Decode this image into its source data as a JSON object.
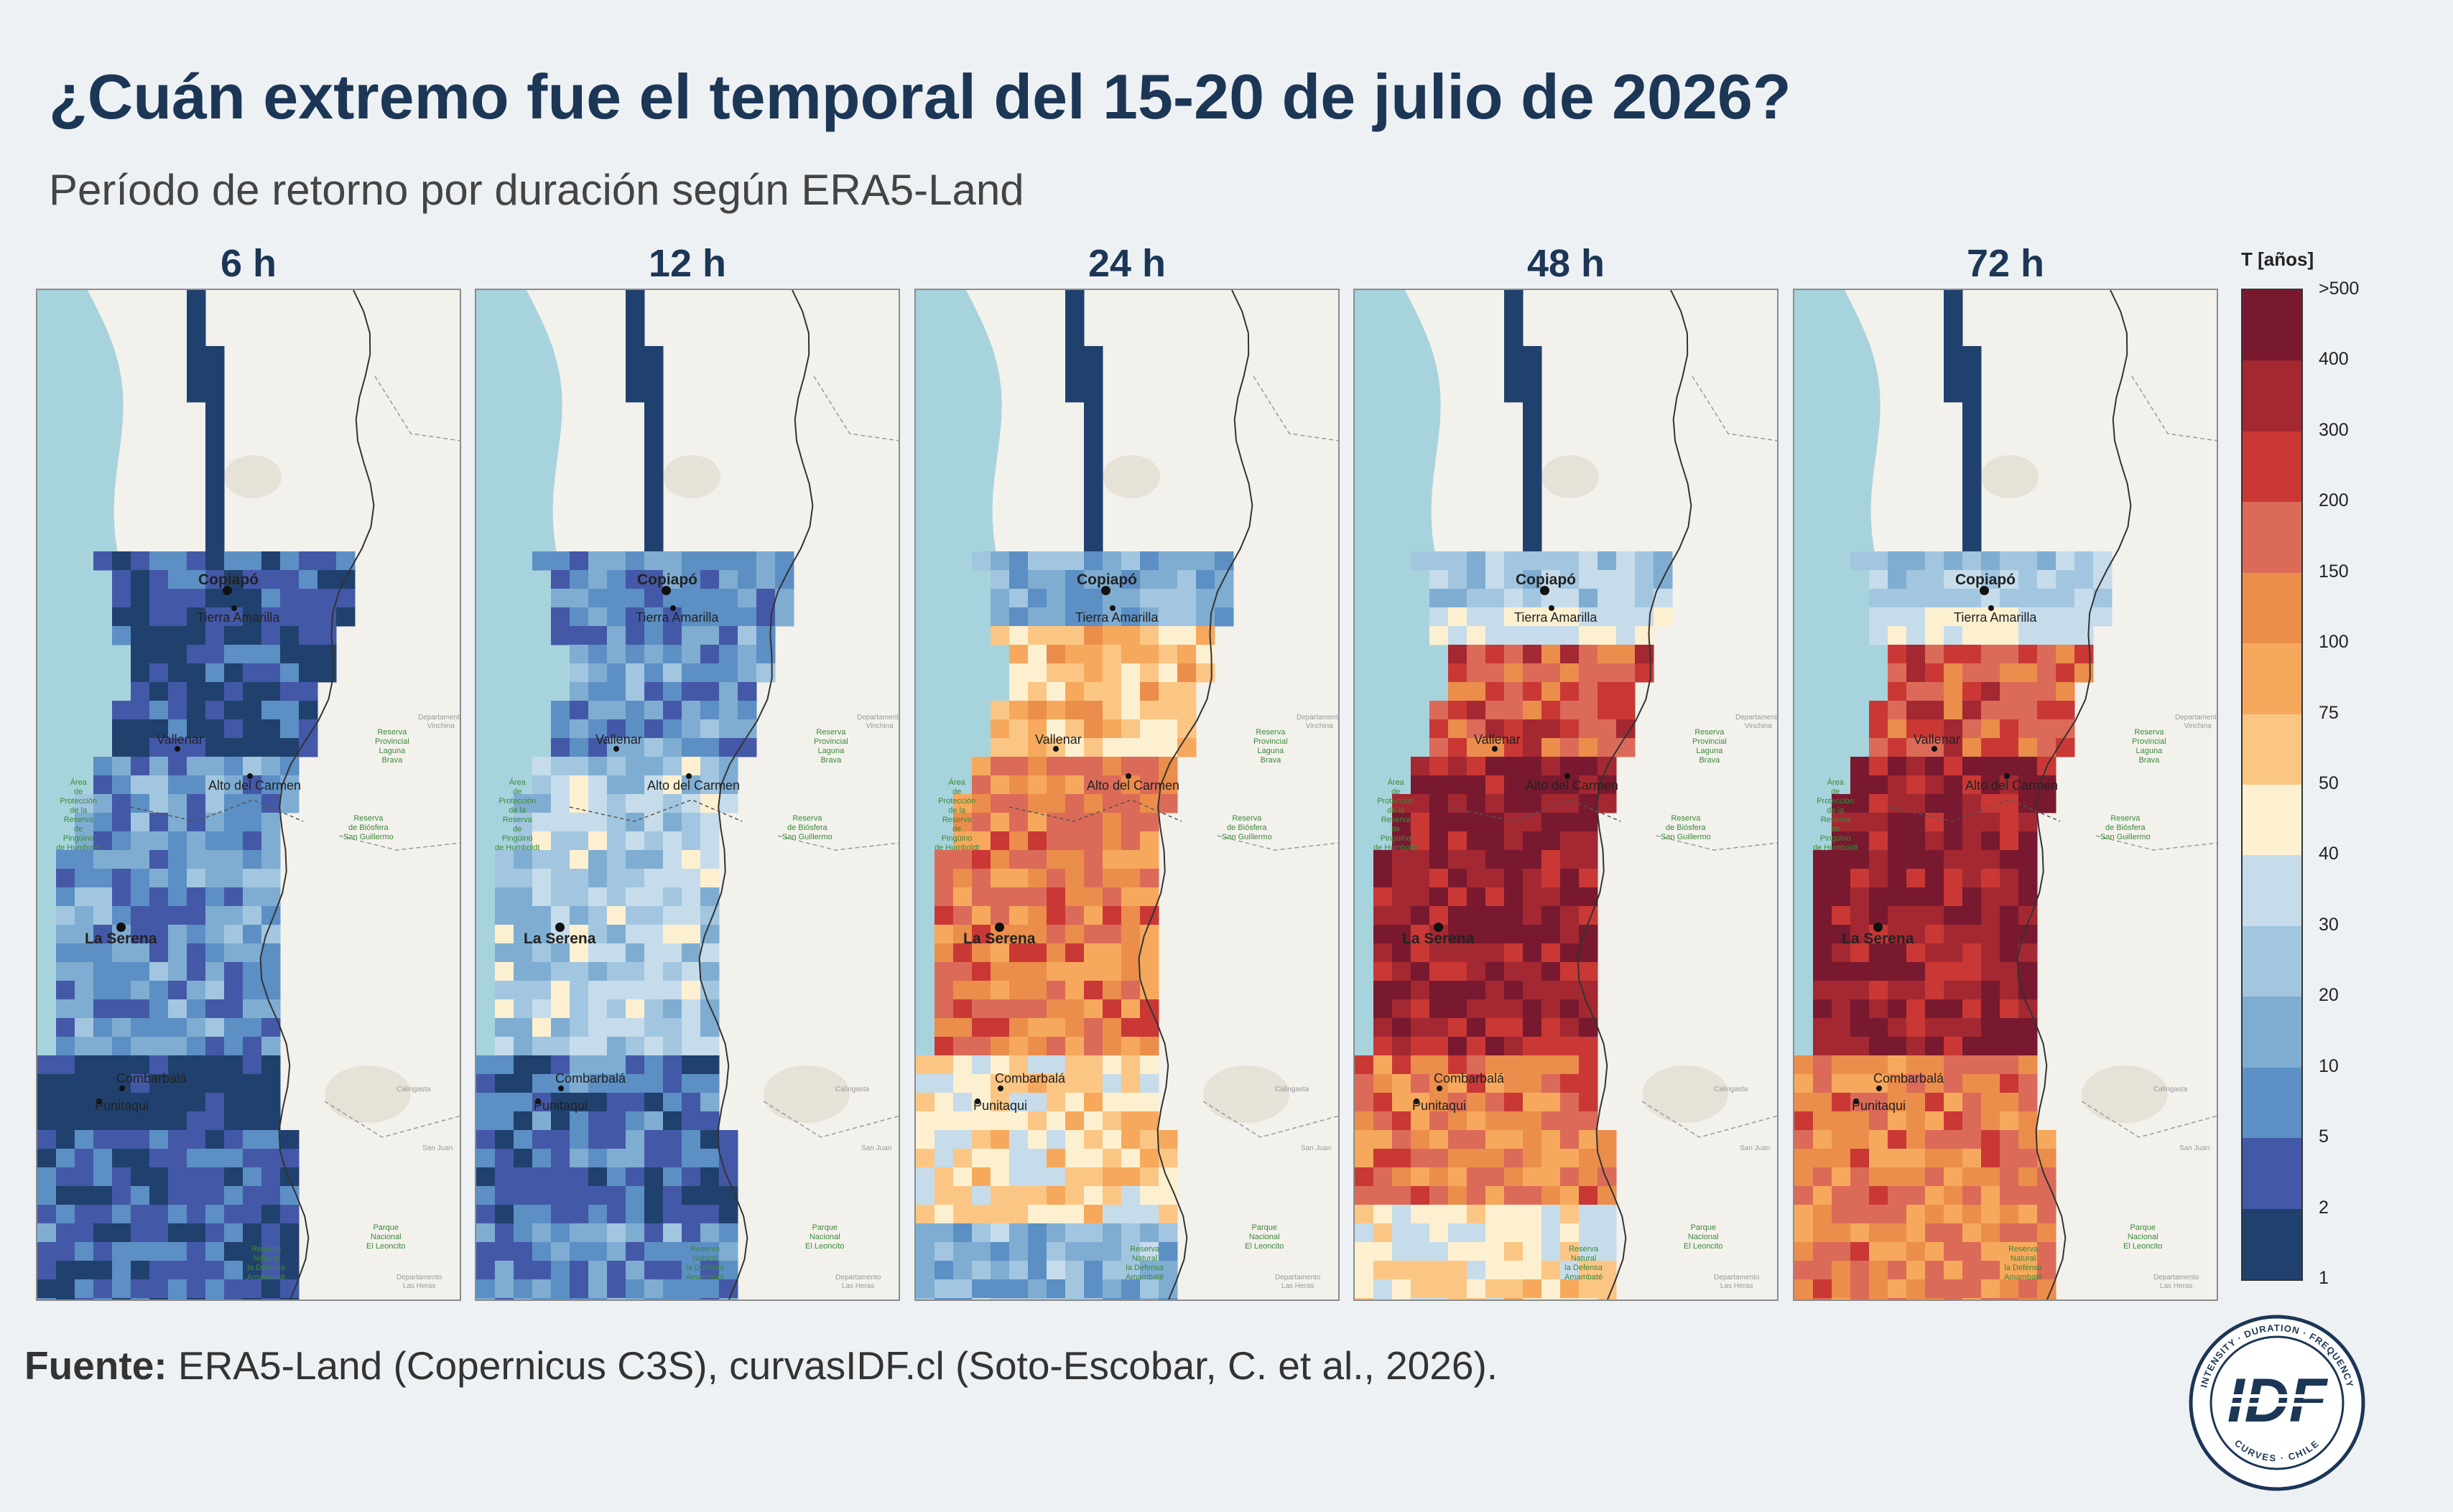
{
  "title": "¿Cuán extremo fue el temporal del 15-20 de julio de 2026?",
  "subtitle": "Período de retorno por duración según ERA5-Land",
  "panels": [
    "6 h",
    "12 h",
    "24 h",
    "48 h",
    "72 h"
  ],
  "colorbar": {
    "title": "T [años]",
    "ticks": [
      ">500",
      "400",
      "300",
      "200",
      "150",
      "100",
      "75",
      "50",
      "40",
      "30",
      "20",
      "10",
      "5",
      "2",
      "1"
    ],
    "colors": [
      "#78192f",
      "#a42831",
      "#c93835",
      "#db6b58",
      "#eb8d4b",
      "#f6a95c",
      "#fbc684",
      "#fdf0d0",
      "#c6dcea",
      "#a2c6df",
      "#7fadd2",
      "#5c8fc4",
      "#4458a8",
      "#20416d"
    ]
  },
  "cities": [
    {
      "name": "Copiapó",
      "big": true
    },
    {
      "name": "Tierra Amarilla",
      "big": false
    },
    {
      "name": "Vallenar",
      "big": false
    },
    {
      "name": "Alto del Carmen",
      "big": false
    },
    {
      "name": "La Serena",
      "big": true
    },
    {
      "name": "Combarbalá",
      "big": false
    },
    {
      "name": "Punitaqui",
      "big": false
    }
  ],
  "parks": [
    "Reserva\nProvincial\nLaguna\nBrava",
    "Reserva\nde Biósfera\nSan Guillermo",
    "Parque\nNacional\nEl Leoncito",
    "Reserva\nNatural\nla Defensa\nAmambaté",
    "Área\nde\nProtección\nde la\nReserva\nde\nPingüino\nde Humboldt"
  ],
  "regions": [
    "Departamento\nVinchina",
    "San Juan",
    "Departamento\nLas Heras",
    "Calingasta"
  ],
  "source": {
    "label": "Fuente:",
    "text": "ERA5-Land (Copernicus C3S), curvasIDF.cl (Soto-Escobar, C. et al., 2026)."
  },
  "logo": {
    "ring_top": "INTENSITY · DURATION · FREQUENCY",
    "ring_bottom": "CURVES · CHILE",
    "letters": "IDF"
  }
}
